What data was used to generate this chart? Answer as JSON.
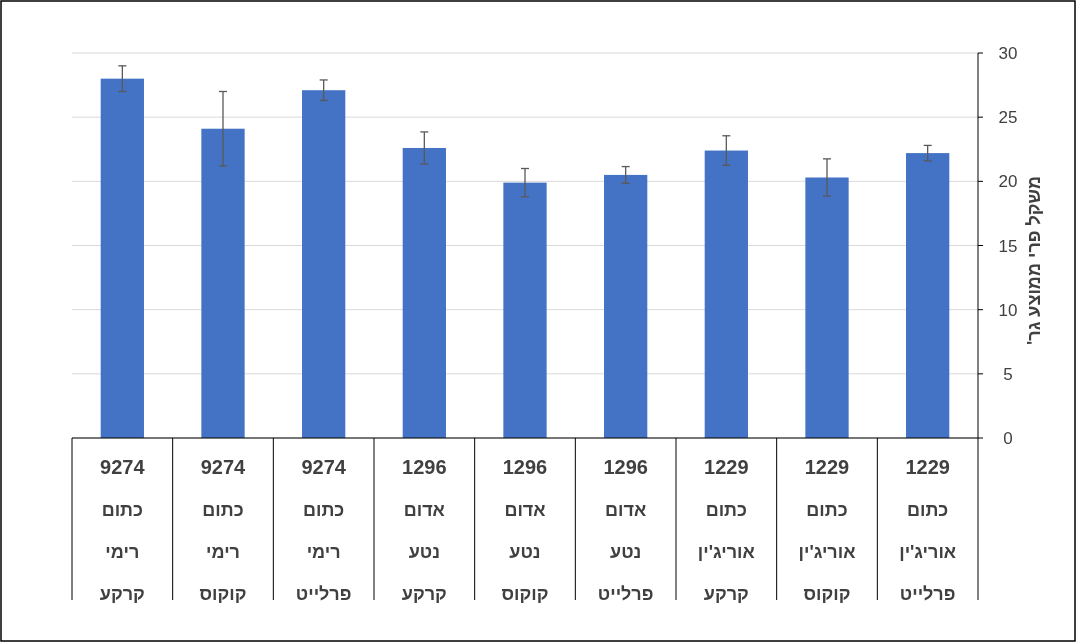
{
  "chart_data": {
    "type": "bar",
    "categories": [
      "9274\nכתום\nרימי\nקרקע",
      "9274\nכתום\nרימי\nקוקוס",
      "9274\nכתום\nרימי\nפרלייט",
      "1296\nאדום\nנטע\nקרקע",
      "1296\nאדום\nנטע\nקוקוס",
      "1296\nאדום\nנטע\nפרלייט",
      "1229\nכתום\nאוריג'ין\nקרקע",
      "1229\nכתום\nאוריג'ין\nקוקוס",
      "1229\nכתום\nאוריג'ין\nפרלייט"
    ],
    "values": [
      28.0,
      24.1,
      27.1,
      22.6,
      19.9,
      20.5,
      22.4,
      20.3,
      22.2
    ],
    "errors": [
      1.0,
      2.9,
      0.8,
      1.25,
      1.1,
      0.65,
      1.15,
      1.45,
      0.6
    ],
    "color": "#4472c4",
    "ylabel": "משקל פרי ממוצע גר'",
    "ylim": [
      0,
      30
    ],
    "yticks": [
      0,
      5,
      10,
      15,
      20,
      25,
      30
    ],
    "grid": "y"
  }
}
